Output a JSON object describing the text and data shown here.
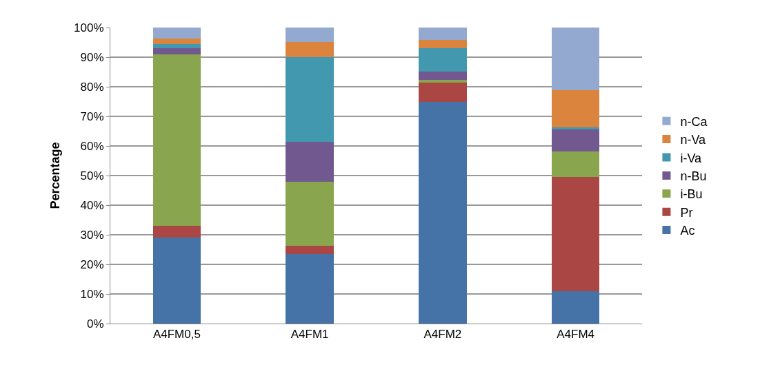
{
  "chart_data": {
    "type": "bar",
    "stacked": true,
    "ylabel": "Percentage",
    "categories": [
      "A4FM0,5",
      "A4FM1",
      "A4FM2",
      "A4FM4"
    ],
    "ylim": [
      0,
      100
    ],
    "yticks": [
      {
        "value": 0,
        "label": "0%"
      },
      {
        "value": 10,
        "label": "10%"
      },
      {
        "value": 20,
        "label": "20%"
      },
      {
        "value": 30,
        "label": "30%"
      },
      {
        "value": 40,
        "label": "40%"
      },
      {
        "value": 50,
        "label": "50%"
      },
      {
        "value": 60,
        "label": "60%"
      },
      {
        "value": 70,
        "label": "70%"
      },
      {
        "value": 80,
        "label": "80%"
      },
      {
        "value": 90,
        "label": "90%"
      },
      {
        "value": 100,
        "label": "100%"
      }
    ],
    "grid": "y",
    "legend": "right",
    "series": [
      {
        "name": "Ac",
        "color": "#4572a7",
        "values": [
          29,
          23.5,
          75,
          11
        ]
      },
      {
        "name": "Pr",
        "color": "#aa4643",
        "values": [
          4,
          2.8,
          6.5,
          38.6
        ]
      },
      {
        "name": "i-Bu",
        "color": "#89a54e",
        "values": [
          58,
          21.7,
          0.8,
          8.5
        ]
      },
      {
        "name": "n-Bu",
        "color": "#71588f",
        "values": [
          2,
          13.3,
          2.9,
          7.7
        ]
      },
      {
        "name": "i-Va",
        "color": "#4198af",
        "values": [
          1.5,
          28.7,
          7.8,
          0.4
        ]
      },
      {
        "name": "n-Va",
        "color": "#db843d",
        "values": [
          1.8,
          5.2,
          2.8,
          12.6
        ]
      },
      {
        "name": "n-Ca",
        "color": "#93a9cf",
        "values": [
          3.7,
          4.8,
          4.2,
          21.2
        ]
      }
    ]
  }
}
